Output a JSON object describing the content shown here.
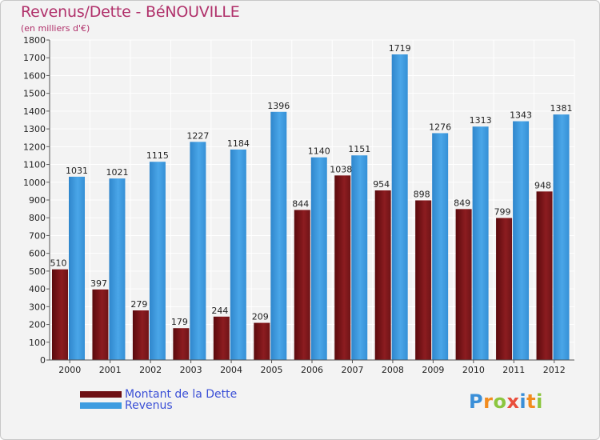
{
  "header": {
    "title": "Revenus/Dette - BéNOUVILLE",
    "subtitle": "(en milliers d'€)"
  },
  "colors": {
    "dette": "#7a1518",
    "revenus": "#3d9ce0",
    "title": "#b0306a",
    "legend_text": "#3a4fd6"
  },
  "legend": {
    "dette_label": "Montant de la Dette",
    "revenus_label": "Revenus"
  },
  "logo": {
    "text": "Proxiti"
  },
  "chart_data": {
    "type": "bar",
    "title": "Revenus/Dette - BéNOUVILLE",
    "subtitle": "(en milliers d'€)",
    "categories": [
      "2000",
      "2001",
      "2002",
      "2003",
      "2004",
      "2005",
      "2006",
      "2007",
      "2008",
      "2009",
      "2010",
      "2011",
      "2012"
    ],
    "series": [
      {
        "name": "Montant de la Dette",
        "values": [
          510,
          397,
          279,
          179,
          244,
          209,
          844,
          1038,
          954,
          898,
          849,
          799,
          948
        ]
      },
      {
        "name": "Revenus",
        "values": [
          1031,
          1021,
          1115,
          1227,
          1184,
          1396,
          1140,
          1151,
          1719,
          1276,
          1313,
          1343,
          1381
        ]
      }
    ],
    "ylim": [
      0,
      1800
    ],
    "yticks": [
      0,
      100,
      200,
      300,
      400,
      500,
      600,
      700,
      800,
      900,
      1000,
      1100,
      1200,
      1300,
      1400,
      1500,
      1600,
      1700,
      1800
    ],
    "grid": true,
    "legend_position": "bottom-left"
  }
}
